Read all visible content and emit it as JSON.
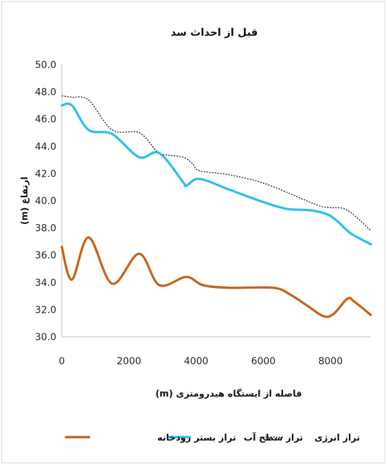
{
  "chart_data": {
    "type": "line",
    "title": "قبل از احداث سد",
    "xlabel": "فاصله از ایستگاه هیدرومتری (m)",
    "ylabel": "ارتفاع (m)",
    "xlim": [
      0,
      9200
    ],
    "ylim": [
      30,
      50
    ],
    "xticks": [
      "0",
      "2000",
      "4000",
      "6000",
      "8000"
    ],
    "yticks": [
      "30.0",
      "32.0",
      "34.0",
      "36.0",
      "38.0",
      "40.0",
      "42.0",
      "44.0",
      "46.0",
      "48.0",
      "50.0"
    ],
    "grid": false,
    "legend_position": "bottom",
    "series": [
      {
        "name": "تراز بستر رودخانه",
        "color": "#c5651a",
        "style": "solid",
        "x": [
          0,
          300,
          800,
          1500,
          2300,
          2900,
          3700,
          4200,
          5000,
          6300,
          6800,
          7300,
          7800,
          8100,
          8500,
          8700,
          9200
        ],
        "y": [
          36.6,
          34.2,
          37.3,
          33.9,
          36.1,
          33.8,
          34.4,
          33.8,
          33.6,
          33.6,
          33.1,
          32.3,
          31.5,
          31.7,
          32.8,
          32.6,
          31.6
        ]
      },
      {
        "name": "تراز سطح آب",
        "color": "#2ec0e8",
        "style": "solid",
        "x": [
          0,
          300,
          800,
          1500,
          2300,
          2900,
          3600,
          3700,
          4100,
          5000,
          6000,
          6700,
          7400,
          7900,
          8200,
          8600,
          9200
        ],
        "y": [
          47.0,
          47.0,
          45.2,
          44.9,
          43.2,
          43.5,
          41.4,
          41.1,
          41.6,
          40.8,
          39.9,
          39.4,
          39.3,
          39.0,
          38.5,
          37.6,
          36.8
        ]
      },
      {
        "name": "تراز انرژی",
        "color": "#333333",
        "style": "dotted",
        "x": [
          0,
          300,
          800,
          1500,
          2300,
          2800,
          3000,
          3600,
          3900,
          4100,
          5000,
          6000,
          7000,
          7700,
          8000,
          8500,
          9200
        ],
        "y": [
          47.7,
          47.6,
          47.4,
          45.2,
          45.0,
          43.7,
          43.4,
          43.2,
          42.7,
          42.2,
          41.9,
          41.3,
          40.3,
          39.6,
          39.5,
          39.3,
          37.8
        ]
      }
    ]
  }
}
